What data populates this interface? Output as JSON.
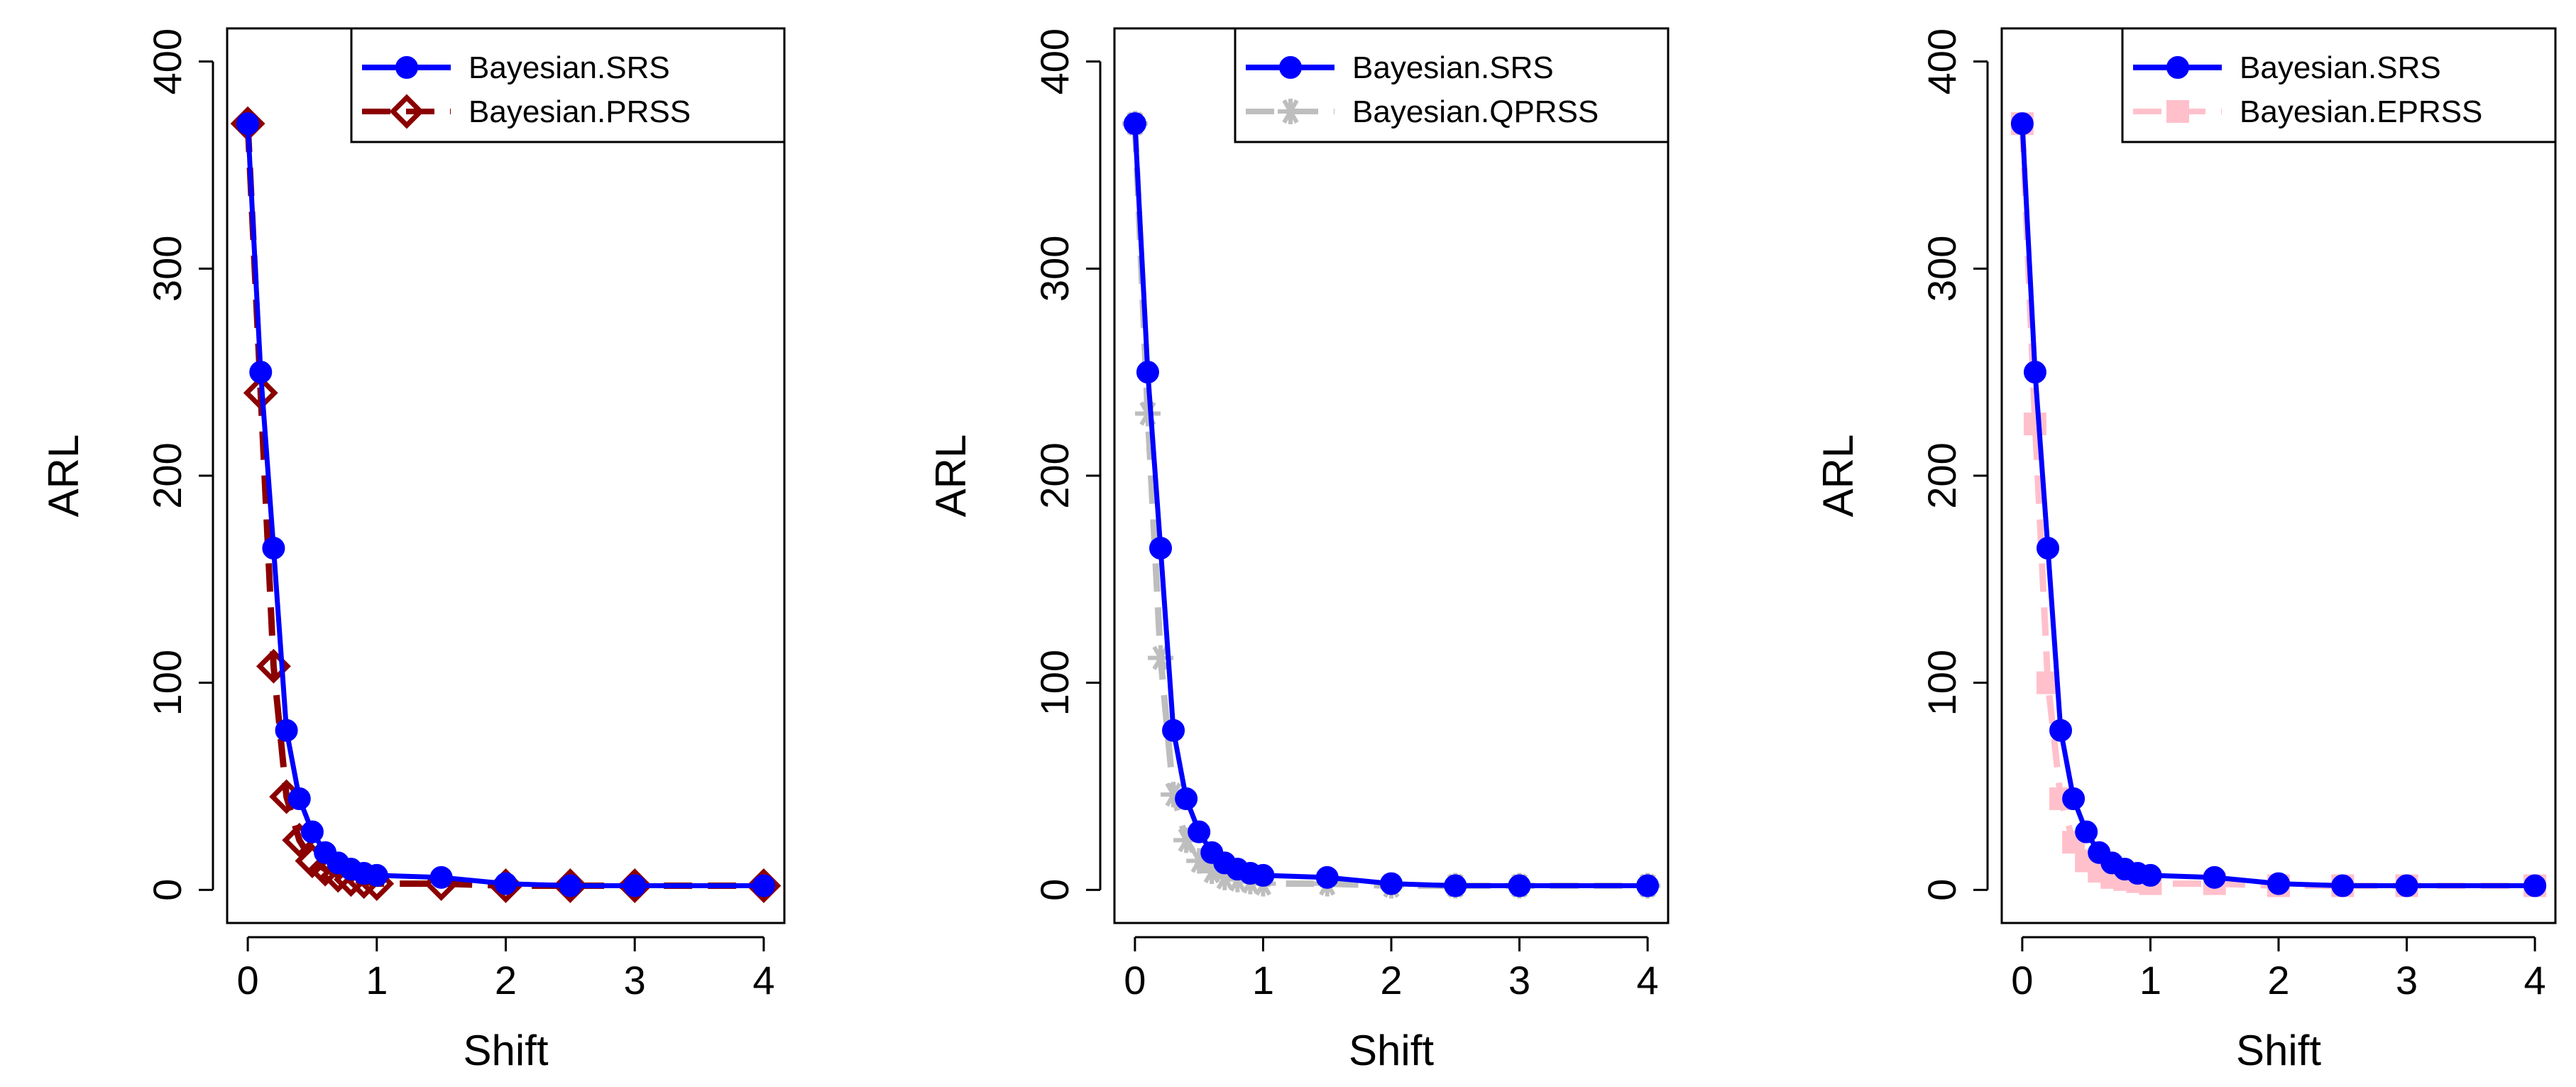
{
  "chart_data": [
    {
      "type": "line",
      "xlabel": "Shift",
      "ylabel": "ARL",
      "xlim": [
        0,
        4
      ],
      "ylim": [
        0,
        400
      ],
      "xticks": [
        "0",
        "1",
        "2",
        "3",
        "4"
      ],
      "yticks": [
        "0",
        "100",
        "200",
        "300",
        "400"
      ],
      "legend_position": "top-right",
      "x": [
        0,
        0.1,
        0.2,
        0.3,
        0.4,
        0.5,
        0.6,
        0.7,
        0.8,
        0.9,
        1.0,
        1.5,
        2.0,
        2.5,
        3.0,
        4.0
      ],
      "series": [
        {
          "name": "Bayesian.SRS",
          "color": "#0000ff",
          "marker": "circle",
          "dash": "solid",
          "values": [
            370,
            250,
            165,
            77,
            44,
            28,
            18,
            13,
            10,
            8,
            7,
            6,
            3,
            2,
            2,
            2
          ]
        },
        {
          "name": "Bayesian.PRSS",
          "color": "#8b0000",
          "marker": "diamond",
          "dash": "dashed",
          "values": [
            370,
            240,
            108,
            45,
            24,
            14,
            10,
            7,
            5,
            4,
            3,
            3,
            2,
            2,
            2,
            2
          ]
        }
      ]
    },
    {
      "type": "line",
      "xlabel": "Shift",
      "ylabel": "ARL",
      "xlim": [
        0,
        4
      ],
      "ylim": [
        0,
        400
      ],
      "xticks": [
        "0",
        "1",
        "2",
        "3",
        "4"
      ],
      "yticks": [
        "0",
        "100",
        "200",
        "300",
        "400"
      ],
      "legend_position": "top-right",
      "x": [
        0,
        0.1,
        0.2,
        0.3,
        0.4,
        0.5,
        0.6,
        0.7,
        0.8,
        0.9,
        1.0,
        1.5,
        2.0,
        2.5,
        3.0,
        4.0
      ],
      "series": [
        {
          "name": "Bayesian.SRS",
          "color": "#0000ff",
          "marker": "circle",
          "dash": "solid",
          "values": [
            370,
            250,
            165,
            77,
            44,
            28,
            18,
            13,
            10,
            8,
            7,
            6,
            3,
            2,
            2,
            2
          ]
        },
        {
          "name": "Bayesian.QPRSS",
          "color": "#bebebe",
          "marker": "star",
          "dash": "dashed",
          "values": [
            370,
            230,
            112,
            46,
            24,
            14,
            9,
            6,
            5,
            4,
            3,
            3,
            2,
            2,
            2,
            2
          ]
        }
      ]
    },
    {
      "type": "line",
      "xlabel": "Shift",
      "ylabel": "ARL",
      "xlim": [
        0,
        4
      ],
      "ylim": [
        0,
        400
      ],
      "xticks": [
        "0",
        "1",
        "2",
        "3",
        "4"
      ],
      "yticks": [
        "0",
        "100",
        "200",
        "300",
        "400"
      ],
      "legend_position": "top-right",
      "x": [
        0,
        0.1,
        0.2,
        0.3,
        0.4,
        0.5,
        0.6,
        0.7,
        0.8,
        0.9,
        1.0,
        1.5,
        2.0,
        2.5,
        3.0,
        4.0
      ],
      "series": [
        {
          "name": "Bayesian.SRS",
          "color": "#0000ff",
          "marker": "circle",
          "dash": "solid",
          "values": [
            370,
            250,
            165,
            77,
            44,
            28,
            18,
            13,
            10,
            8,
            7,
            6,
            3,
            2,
            2,
            2
          ]
        },
        {
          "name": "Bayesian.EPRSS",
          "color": "#ffc0cb",
          "marker": "square",
          "dash": "dashed",
          "values": [
            370,
            225,
            100,
            44,
            23,
            14,
            9,
            6,
            5,
            4,
            3,
            3,
            2,
            2,
            2,
            2
          ]
        }
      ]
    }
  ]
}
